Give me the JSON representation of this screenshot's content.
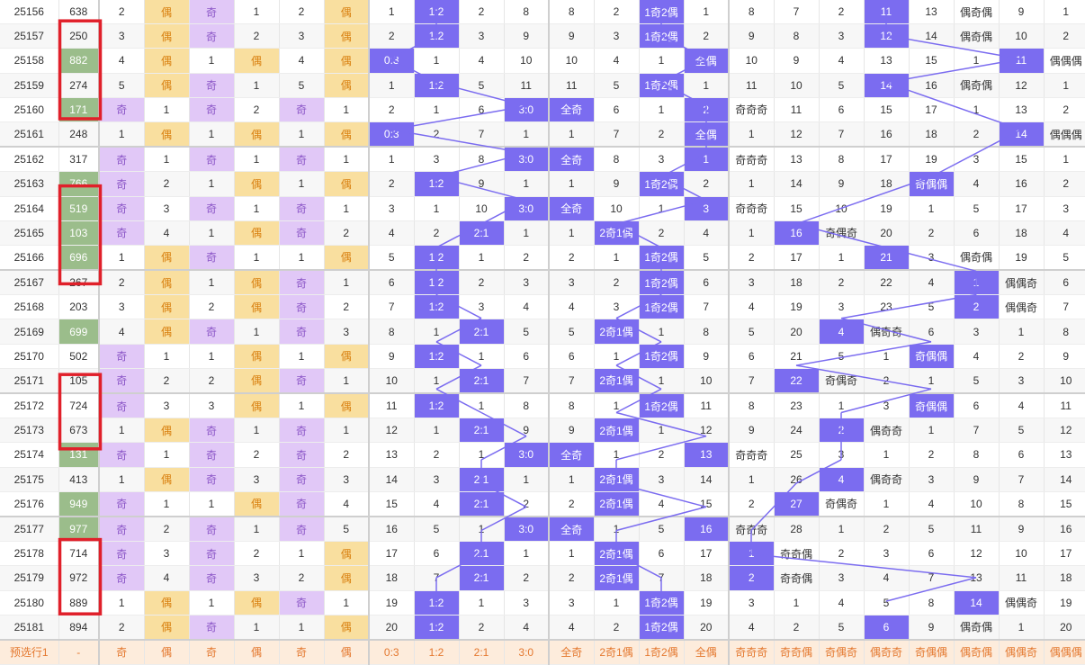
{
  "colors": {
    "odd_bg": "#e1c8f7",
    "even_bg": "#f9df9f",
    "hit_bg": "#7b6cf0",
    "green_bg": "#9bbd8b",
    "highlight_box": "#e0202a",
    "line": "#7b6cf0"
  },
  "rows": [
    {
      "issue": "25156",
      "num": "638",
      "g": false,
      "hits": {
        "c8": "1:2",
        "c13": "1奇2偶",
        "c18": "偶奇偶"
      },
      "cells": [
        "2",
        "偶",
        "奇",
        "1",
        "2",
        "偶",
        "1",
        "1:2",
        "2",
        "8",
        "8",
        "2",
        "1奇2偶",
        "1",
        "8",
        "7",
        "2",
        "11",
        "13",
        "偶奇偶",
        "9",
        "1"
      ]
    },
    {
      "issue": "25157",
      "num": "250",
      "g": false,
      "hits": {
        "c8": "1:2",
        "c13": "1奇2偶",
        "c18": "偶奇偶"
      },
      "cells": [
        "3",
        "偶",
        "奇",
        "2",
        "3",
        "偶",
        "2",
        "1:2",
        "3",
        "9",
        "9",
        "3",
        "1奇2偶",
        "2",
        "9",
        "8",
        "3",
        "12",
        "14",
        "偶奇偶",
        "10",
        "2"
      ]
    },
    {
      "issue": "25158",
      "num": "882",
      "g": true,
      "hits": {
        "c7": "0:3",
        "c14": "全偶",
        "c21": "偶偶偶"
      },
      "cells": [
        "4",
        "偶",
        "1",
        "偶",
        "4",
        "偶",
        "0:3",
        "1",
        "4",
        "10",
        "10",
        "4",
        "1",
        "全偶",
        "10",
        "9",
        "4",
        "13",
        "15",
        "1",
        "11",
        "偶偶偶"
      ]
    },
    {
      "issue": "25159",
      "num": "274",
      "g": false,
      "hits": {
        "c8": "1:2",
        "c13": "1奇2偶",
        "c18": "偶奇偶"
      },
      "cells": [
        "5",
        "偶",
        "奇",
        "1",
        "5",
        "偶",
        "1",
        "1:2",
        "5",
        "11",
        "11",
        "5",
        "1奇2偶",
        "1",
        "11",
        "10",
        "5",
        "14",
        "16",
        "偶奇偶",
        "12",
        "1"
      ]
    },
    {
      "issue": "25160",
      "num": "171",
      "g": true,
      "hits": {
        "c10": "3:0",
        "c11": "全奇",
        "c14": "奇奇奇"
      },
      "cells": [
        "奇",
        "1",
        "奇",
        "2",
        "奇",
        "1",
        "2",
        "1",
        "6",
        "3:0",
        "全奇",
        "6",
        "1",
        "2",
        "奇奇奇",
        "11",
        "6",
        "15",
        "17",
        "1",
        "13",
        "2"
      ]
    },
    {
      "issue": "25161",
      "num": "248",
      "g": false,
      "hits": {
        "c7": "0:3",
        "c14": "全偶",
        "c21": "偶偶偶"
      },
      "cells": [
        "1",
        "偶",
        "1",
        "偶",
        "1",
        "偶",
        "0:3",
        "2",
        "7",
        "1",
        "1",
        "7",
        "2",
        "全偶",
        "1",
        "12",
        "7",
        "16",
        "18",
        "2",
        "14",
        "偶偶偶"
      ]
    },
    {
      "issue": "25162",
      "num": "317",
      "g": false,
      "hits": {
        "c10": "3:0",
        "c11": "全奇",
        "c14": "奇奇奇"
      },
      "cells": [
        "奇",
        "1",
        "奇",
        "1",
        "奇",
        "1",
        "1",
        "3",
        "8",
        "3:0",
        "全奇",
        "8",
        "3",
        "1",
        "奇奇奇",
        "13",
        "8",
        "17",
        "19",
        "3",
        "15",
        "1"
      ]
    },
    {
      "issue": "25163",
      "num": "766",
      "g": true,
      "hits": {
        "c8": "1:2",
        "c13": "1奇2偶",
        "c19": "奇偶偶"
      },
      "cells": [
        "奇",
        "2",
        "1",
        "偶",
        "1",
        "偶",
        "2",
        "1:2",
        "9",
        "1",
        "1",
        "9",
        "1奇2偶",
        "2",
        "1",
        "14",
        "9",
        "18",
        "奇偶偶",
        "4",
        "16",
        "2"
      ]
    },
    {
      "issue": "25164",
      "num": "519",
      "g": true,
      "hits": {
        "c10": "3:0",
        "c11": "全奇",
        "c14": "奇奇奇"
      },
      "cells": [
        "奇",
        "3",
        "奇",
        "1",
        "奇",
        "1",
        "3",
        "1",
        "10",
        "3:0",
        "全奇",
        "10",
        "1",
        "3",
        "奇奇奇",
        "15",
        "10",
        "19",
        "1",
        "5",
        "17",
        "3"
      ]
    },
    {
      "issue": "25165",
      "num": "103",
      "g": true,
      "hits": {
        "c9": "2:1",
        "c12": "2奇1偶",
        "c16": "奇偶奇"
      },
      "cells": [
        "奇",
        "4",
        "1",
        "偶",
        "奇",
        "2",
        "4",
        "2",
        "2:1",
        "1",
        "1",
        "2奇1偶",
        "2",
        "4",
        "1",
        "16",
        "奇偶奇",
        "20",
        "2",
        "6",
        "18",
        "4"
      ]
    },
    {
      "issue": "25166",
      "num": "696",
      "g": true,
      "hits": {
        "c8": "1:2",
        "c13": "1奇2偶",
        "c18": "偶奇偶"
      },
      "cells": [
        "1",
        "偶",
        "奇",
        "1",
        "1",
        "偶",
        "5",
        "1:2",
        "1",
        "2",
        "2",
        "1",
        "1奇2偶",
        "5",
        "2",
        "17",
        "1",
        "21",
        "3",
        "偶奇偶",
        "19",
        "5"
      ]
    },
    {
      "issue": "25167",
      "num": "267",
      "g": false,
      "hits": {
        "c8": "1:2",
        "c13": "1奇2偶",
        "c20": "偶偶奇"
      },
      "cells": [
        "2",
        "偶",
        "1",
        "偶",
        "奇",
        "1",
        "6",
        "1:2",
        "2",
        "3",
        "3",
        "2",
        "1奇2偶",
        "6",
        "3",
        "18",
        "2",
        "22",
        "4",
        "1",
        "偶偶奇",
        "6"
      ]
    },
    {
      "issue": "25168",
      "num": "203",
      "g": false,
      "hits": {
        "c8": "1:2",
        "c13": "1奇2偶",
        "c20": "偶偶奇"
      },
      "cells": [
        "3",
        "偶",
        "2",
        "偶",
        "奇",
        "2",
        "7",
        "1:2",
        "3",
        "4",
        "4",
        "3",
        "1奇2偶",
        "7",
        "4",
        "19",
        "3",
        "23",
        "5",
        "2",
        "偶偶奇",
        "7"
      ]
    },
    {
      "issue": "25169",
      "num": "699",
      "g": true,
      "hits": {
        "c9": "2:1",
        "c12": "2奇1偶",
        "c17": "偶奇奇"
      },
      "cells": [
        "4",
        "偶",
        "奇",
        "1",
        "奇",
        "3",
        "8",
        "1",
        "2:1",
        "5",
        "5",
        "2奇1偶",
        "1",
        "8",
        "5",
        "20",
        "4",
        "偶奇奇",
        "6",
        "3",
        "1",
        "8"
      ]
    },
    {
      "issue": "25170",
      "num": "502",
      "g": false,
      "hits": {
        "c8": "1:2",
        "c13": "1奇2偶",
        "c19": "奇偶偶"
      },
      "cells": [
        "奇",
        "1",
        "1",
        "偶",
        "1",
        "偶",
        "9",
        "1:2",
        "1",
        "6",
        "6",
        "1",
        "1奇2偶",
        "9",
        "6",
        "21",
        "5",
        "1",
        "奇偶偶",
        "4",
        "2",
        "9"
      ]
    },
    {
      "issue": "25171",
      "num": "105",
      "g": false,
      "hits": {
        "c9": "2:1",
        "c12": "2奇1偶",
        "c16": "奇偶奇"
      },
      "cells": [
        "奇",
        "2",
        "2",
        "偶",
        "奇",
        "1",
        "10",
        "1",
        "2:1",
        "7",
        "7",
        "2奇1偶",
        "1",
        "10",
        "7",
        "22",
        "奇偶奇",
        "2",
        "1",
        "5",
        "3",
        "10"
      ]
    },
    {
      "issue": "25172",
      "num": "724",
      "g": false,
      "hits": {
        "c8": "1:2",
        "c13": "1奇2偶",
        "c19": "奇偶偶"
      },
      "cells": [
        "奇",
        "3",
        "3",
        "偶",
        "1",
        "偶",
        "11",
        "1:2",
        "1",
        "8",
        "8",
        "1",
        "1奇2偶",
        "11",
        "8",
        "23",
        "1",
        "3",
        "奇偶偶",
        "6",
        "4",
        "11"
      ]
    },
    {
      "issue": "25173",
      "num": "673",
      "g": false,
      "hits": {
        "c9": "2:1",
        "c12": "2奇1偶",
        "c17": "偶奇奇"
      },
      "cells": [
        "1",
        "偶",
        "奇",
        "1",
        "奇",
        "1",
        "12",
        "1",
        "2:1",
        "9",
        "9",
        "2奇1偶",
        "1",
        "12",
        "9",
        "24",
        "2",
        "偶奇奇",
        "1",
        "7",
        "5",
        "12"
      ]
    },
    {
      "issue": "25174",
      "num": "131",
      "g": true,
      "hits": {
        "c10": "3:0",
        "c11": "全奇",
        "c14": "奇奇奇"
      },
      "cells": [
        "奇",
        "1",
        "奇",
        "2",
        "奇",
        "2",
        "13",
        "2",
        "1",
        "3:0",
        "全奇",
        "1",
        "2",
        "13",
        "奇奇奇",
        "25",
        "3",
        "1",
        "2",
        "8",
        "6",
        "13"
      ]
    },
    {
      "issue": "25175",
      "num": "413",
      "g": false,
      "hits": {
        "c9": "2:1",
        "c12": "2奇1偶",
        "c17": "偶奇奇"
      },
      "cells": [
        "1",
        "偶",
        "奇",
        "3",
        "奇",
        "3",
        "14",
        "3",
        "2:1",
        "1",
        "1",
        "2奇1偶",
        "3",
        "14",
        "1",
        "26",
        "4",
        "偶奇奇",
        "3",
        "9",
        "7",
        "14"
      ]
    },
    {
      "issue": "25176",
      "num": "949",
      "g": true,
      "hits": {
        "c9": "2:1",
        "c12": "2奇1偶",
        "c16": "奇偶奇"
      },
      "cells": [
        "奇",
        "1",
        "1",
        "偶",
        "奇",
        "4",
        "15",
        "4",
        "2:1",
        "2",
        "2",
        "2奇1偶",
        "4",
        "15",
        "2",
        "27",
        "奇偶奇",
        "1",
        "4",
        "10",
        "8",
        "15"
      ]
    },
    {
      "issue": "25177",
      "num": "977",
      "g": true,
      "hits": {
        "c10": "3:0",
        "c11": "全奇",
        "c14": "奇奇奇"
      },
      "cells": [
        "奇",
        "2",
        "奇",
        "1",
        "奇",
        "5",
        "16",
        "5",
        "1",
        "3:0",
        "全奇",
        "1",
        "5",
        "16",
        "奇奇奇",
        "28",
        "1",
        "2",
        "5",
        "11",
        "9",
        "16"
      ]
    },
    {
      "issue": "25178",
      "num": "714",
      "g": false,
      "hits": {
        "c9": "2:1",
        "c12": "2奇1偶",
        "c15": "奇奇偶"
      },
      "cells": [
        "奇",
        "3",
        "奇",
        "2",
        "1",
        "偶",
        "17",
        "6",
        "2:1",
        "1",
        "1",
        "2奇1偶",
        "6",
        "17",
        "1",
        "奇奇偶",
        "2",
        "3",
        "6",
        "12",
        "10",
        "17"
      ]
    },
    {
      "issue": "25179",
      "num": "972",
      "g": false,
      "hits": {
        "c9": "2:1",
        "c12": "2奇1偶",
        "c15": "奇奇偶"
      },
      "cells": [
        "奇",
        "4",
        "奇",
        "3",
        "2",
        "偶",
        "18",
        "7",
        "2:1",
        "2",
        "2",
        "2奇1偶",
        "7",
        "18",
        "2",
        "奇奇偶",
        "3",
        "4",
        "7",
        "13",
        "11",
        "18"
      ]
    },
    {
      "issue": "25180",
      "num": "889",
      "g": false,
      "hits": {
        "c8": "1:2",
        "c13": "1奇2偶",
        "c20": "偶偶奇"
      },
      "cells": [
        "1",
        "偶",
        "1",
        "偶",
        "奇",
        "1",
        "19",
        "1:2",
        "1",
        "3",
        "3",
        "1",
        "1奇2偶",
        "19",
        "3",
        "1",
        "4",
        "5",
        "8",
        "14",
        "偶偶奇",
        "19"
      ]
    },
    {
      "issue": "25181",
      "num": "894",
      "g": false,
      "hits": {
        "c8": "1:2",
        "c13": "1奇2偶",
        "c18": "偶奇偶"
      },
      "cells": [
        "2",
        "偶",
        "奇",
        "1",
        "1",
        "偶",
        "20",
        "1:2",
        "2",
        "4",
        "4",
        "2",
        "1奇2偶",
        "20",
        "4",
        "2",
        "5",
        "6",
        "9",
        "偶奇偶",
        "1",
        "20"
      ]
    }
  ],
  "footer": {
    "label": "预选行1",
    "num": "-",
    "cells": [
      "奇",
      "偶",
      "奇",
      "偶",
      "奇",
      "偶",
      "0:3",
      "1:2",
      "2:1",
      "3:0",
      "全奇",
      "2奇1偶",
      "1奇2偶",
      "全偶",
      "奇奇奇",
      "奇奇偶",
      "奇偶奇",
      "偶奇奇",
      "奇偶偶",
      "偶奇偶",
      "偶偶奇",
      "偶偶偶"
    ]
  }
}
